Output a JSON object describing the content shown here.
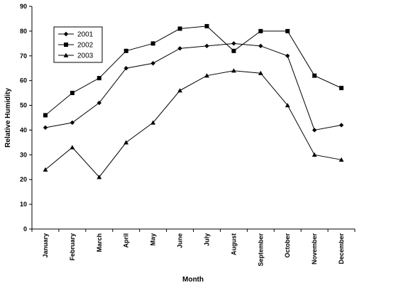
{
  "chart_data": {
    "type": "line",
    "categories": [
      "January",
      "February",
      "March",
      "April",
      "May",
      "June",
      "July",
      "August",
      "September",
      "October",
      "November",
      "December"
    ],
    "series": [
      {
        "name": "2001",
        "marker": "diamond",
        "values": [
          41,
          43,
          51,
          65,
          67,
          73,
          74,
          75,
          74,
          70,
          40,
          42
        ]
      },
      {
        "name": "2002",
        "marker": "square",
        "values": [
          46,
          55,
          61,
          72,
          75,
          81,
          82,
          72,
          80,
          80,
          62,
          57
        ]
      },
      {
        "name": "2003",
        "marker": "triangle",
        "values": [
          24,
          33,
          21,
          35,
          43,
          56,
          62,
          64,
          63,
          50,
          30,
          28
        ]
      }
    ],
    "xlabel": "Month",
    "ylabel": "Relative Humidity",
    "ylim": [
      0,
      90
    ],
    "yticks": [
      0,
      10,
      20,
      30,
      40,
      50,
      60,
      70,
      80,
      90
    ],
    "grid": false,
    "legend": "top-left",
    "line_color": "#000000"
  }
}
